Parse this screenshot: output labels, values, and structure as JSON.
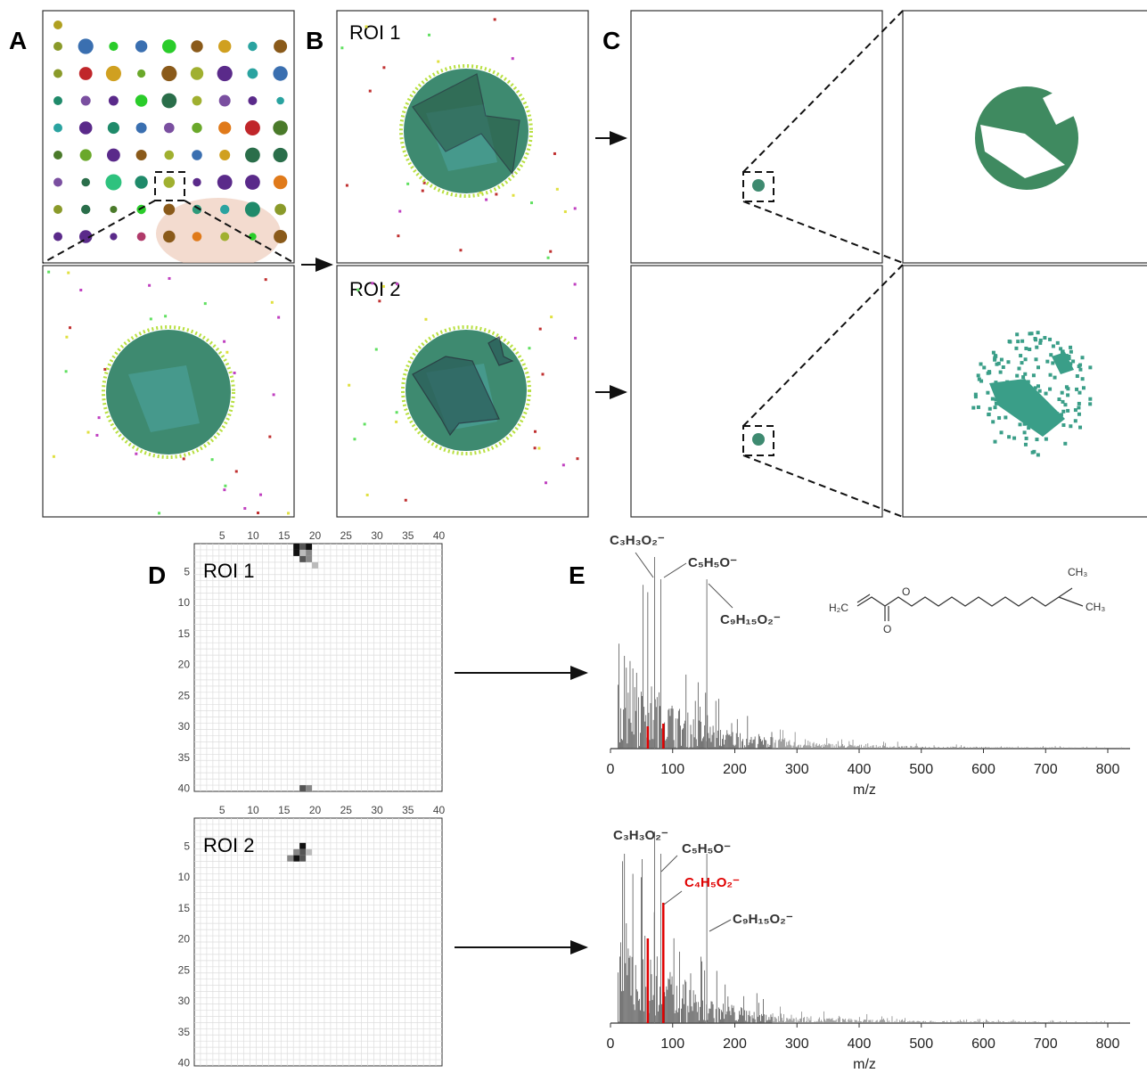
{
  "panel_labels": [
    "A",
    "B",
    "C",
    "D",
    "E"
  ],
  "panel_b": {
    "roi_labels": [
      "ROI 1",
      "ROI 2"
    ]
  },
  "panel_d": {
    "roi_labels": [
      "ROI 1",
      "ROI 2"
    ],
    "xticks": [
      5,
      10,
      15,
      20,
      25,
      30,
      35,
      40
    ],
    "yticks": [
      5,
      10,
      15,
      20,
      25,
      30,
      35,
      40
    ]
  },
  "panel_e": {
    "xticks": [
      0,
      100,
      200,
      300,
      400,
      500,
      600,
      700,
      800
    ],
    "xlabel": "m/z",
    "annotations_top": [
      "C₃H₃O₂⁻",
      "C₅H₅O⁻",
      "C₉H₁₅O₂⁻"
    ],
    "annotations_bottom": [
      "C₃H₃O₂⁻",
      "C₅H₅O⁻",
      "C₄H₅O₂⁻",
      "C₉H₁₅O₂⁻"
    ],
    "structure_labels": [
      "H₂C",
      "O",
      "O",
      "CH₃",
      "CH₃"
    ]
  }
}
